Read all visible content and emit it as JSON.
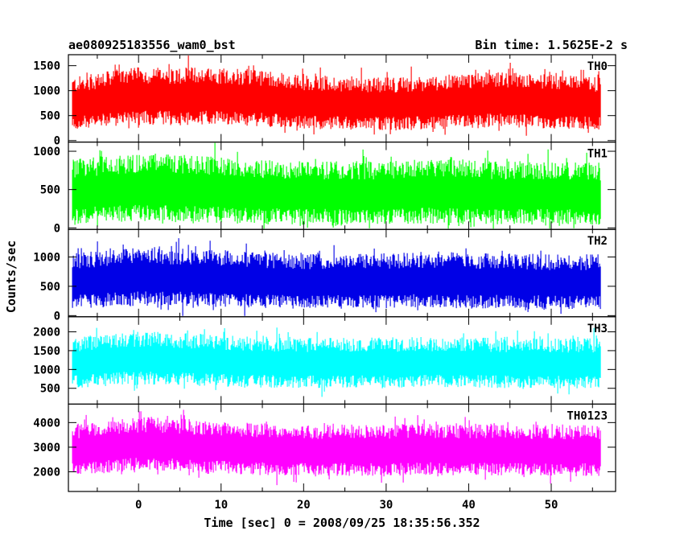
{
  "header": {
    "title": "ae080925183556_wam0_bst",
    "bin_time": "Bin time: 1.5625E-2 s"
  },
  "chart_data": {
    "type": "line",
    "title": "ae080925183556_wam0_bst",
    "subtitle": "Bin time: 1.5625E-2 s",
    "xlabel": "Time [sec] 0 = 2008/09/25 18:35:56.352",
    "ylabel": "Counts/sec",
    "xlim": [
      -8.5,
      57.8
    ],
    "x_start": -8,
    "x_end": 56,
    "x_ticks": [
      0,
      10,
      20,
      30,
      40,
      50
    ],
    "x_tick_labels": [
      "0",
      "10",
      "20",
      "30",
      "40",
      "50"
    ],
    "bin_time_s": 0.015625,
    "panels": [
      {
        "name": "TH0",
        "color": "#ff0000",
        "ylim": [
          -30,
          1720
        ],
        "y_ticks": [
          0,
          500,
          1000,
          1500
        ],
        "y_tick_labels": [
          "0",
          "500",
          "1000",
          "1500"
        ],
        "values": [
          720,
          780,
          850,
          870,
          860,
          880,
          860,
          840,
          800,
          760,
          740,
          730,
          720,
          720,
          740,
          760,
          790,
          800,
          780,
          760,
          740,
          720
        ]
      },
      {
        "name": "TH1",
        "color": "#00ff00",
        "ylim": [
          -20,
          1120
        ],
        "y_ticks": [
          0,
          500,
          1000
        ],
        "y_tick_labels": [
          "0",
          "500",
          "1000"
        ],
        "values": [
          460,
          480,
          500,
          520,
          500,
          490,
          470,
          460,
          450,
          440,
          440,
          440,
          440,
          450,
          460,
          460,
          450,
          440,
          440,
          440,
          430,
          430
        ]
      },
      {
        "name": "TH2",
        "color": "#0000e6",
        "ylim": [
          -20,
          1470
        ],
        "y_ticks": [
          0,
          500,
          1000
        ],
        "y_tick_labels": [
          "0",
          "500",
          "1000"
        ],
        "values": [
          580,
          600,
          630,
          650,
          640,
          630,
          610,
          590,
          580,
          570,
          570,
          570,
          570,
          580,
          590,
          590,
          580,
          570,
          570,
          560,
          560,
          560
        ]
      },
      {
        "name": "TH3",
        "color": "#00ffff",
        "ylim": [
          80,
          2400
        ],
        "y_ticks": [
          500,
          1000,
          1500,
          2000
        ],
        "y_tick_labels": [
          "500",
          "1000",
          "1500",
          "2000"
        ],
        "values": [
          1150,
          1200,
          1260,
          1280,
          1250,
          1230,
          1200,
          1180,
          1160,
          1150,
          1150,
          1150,
          1150,
          1160,
          1170,
          1170,
          1160,
          1150,
          1150,
          1140,
          1140,
          1140
        ]
      },
      {
        "name": "TH0123",
        "color": "#ff00ff",
        "ylim": [
          1200,
          4750
        ],
        "y_ticks": [
          2000,
          3000,
          4000
        ],
        "y_tick_labels": [
          "2000",
          "3000",
          "4000"
        ],
        "values": [
          2850,
          2950,
          3050,
          3100,
          3050,
          3000,
          2950,
          2900,
          2850,
          2850,
          2850,
          2850,
          2850,
          2860,
          2880,
          2880,
          2860,
          2850,
          2840,
          2830,
          2830,
          2830
        ]
      }
    ]
  }
}
